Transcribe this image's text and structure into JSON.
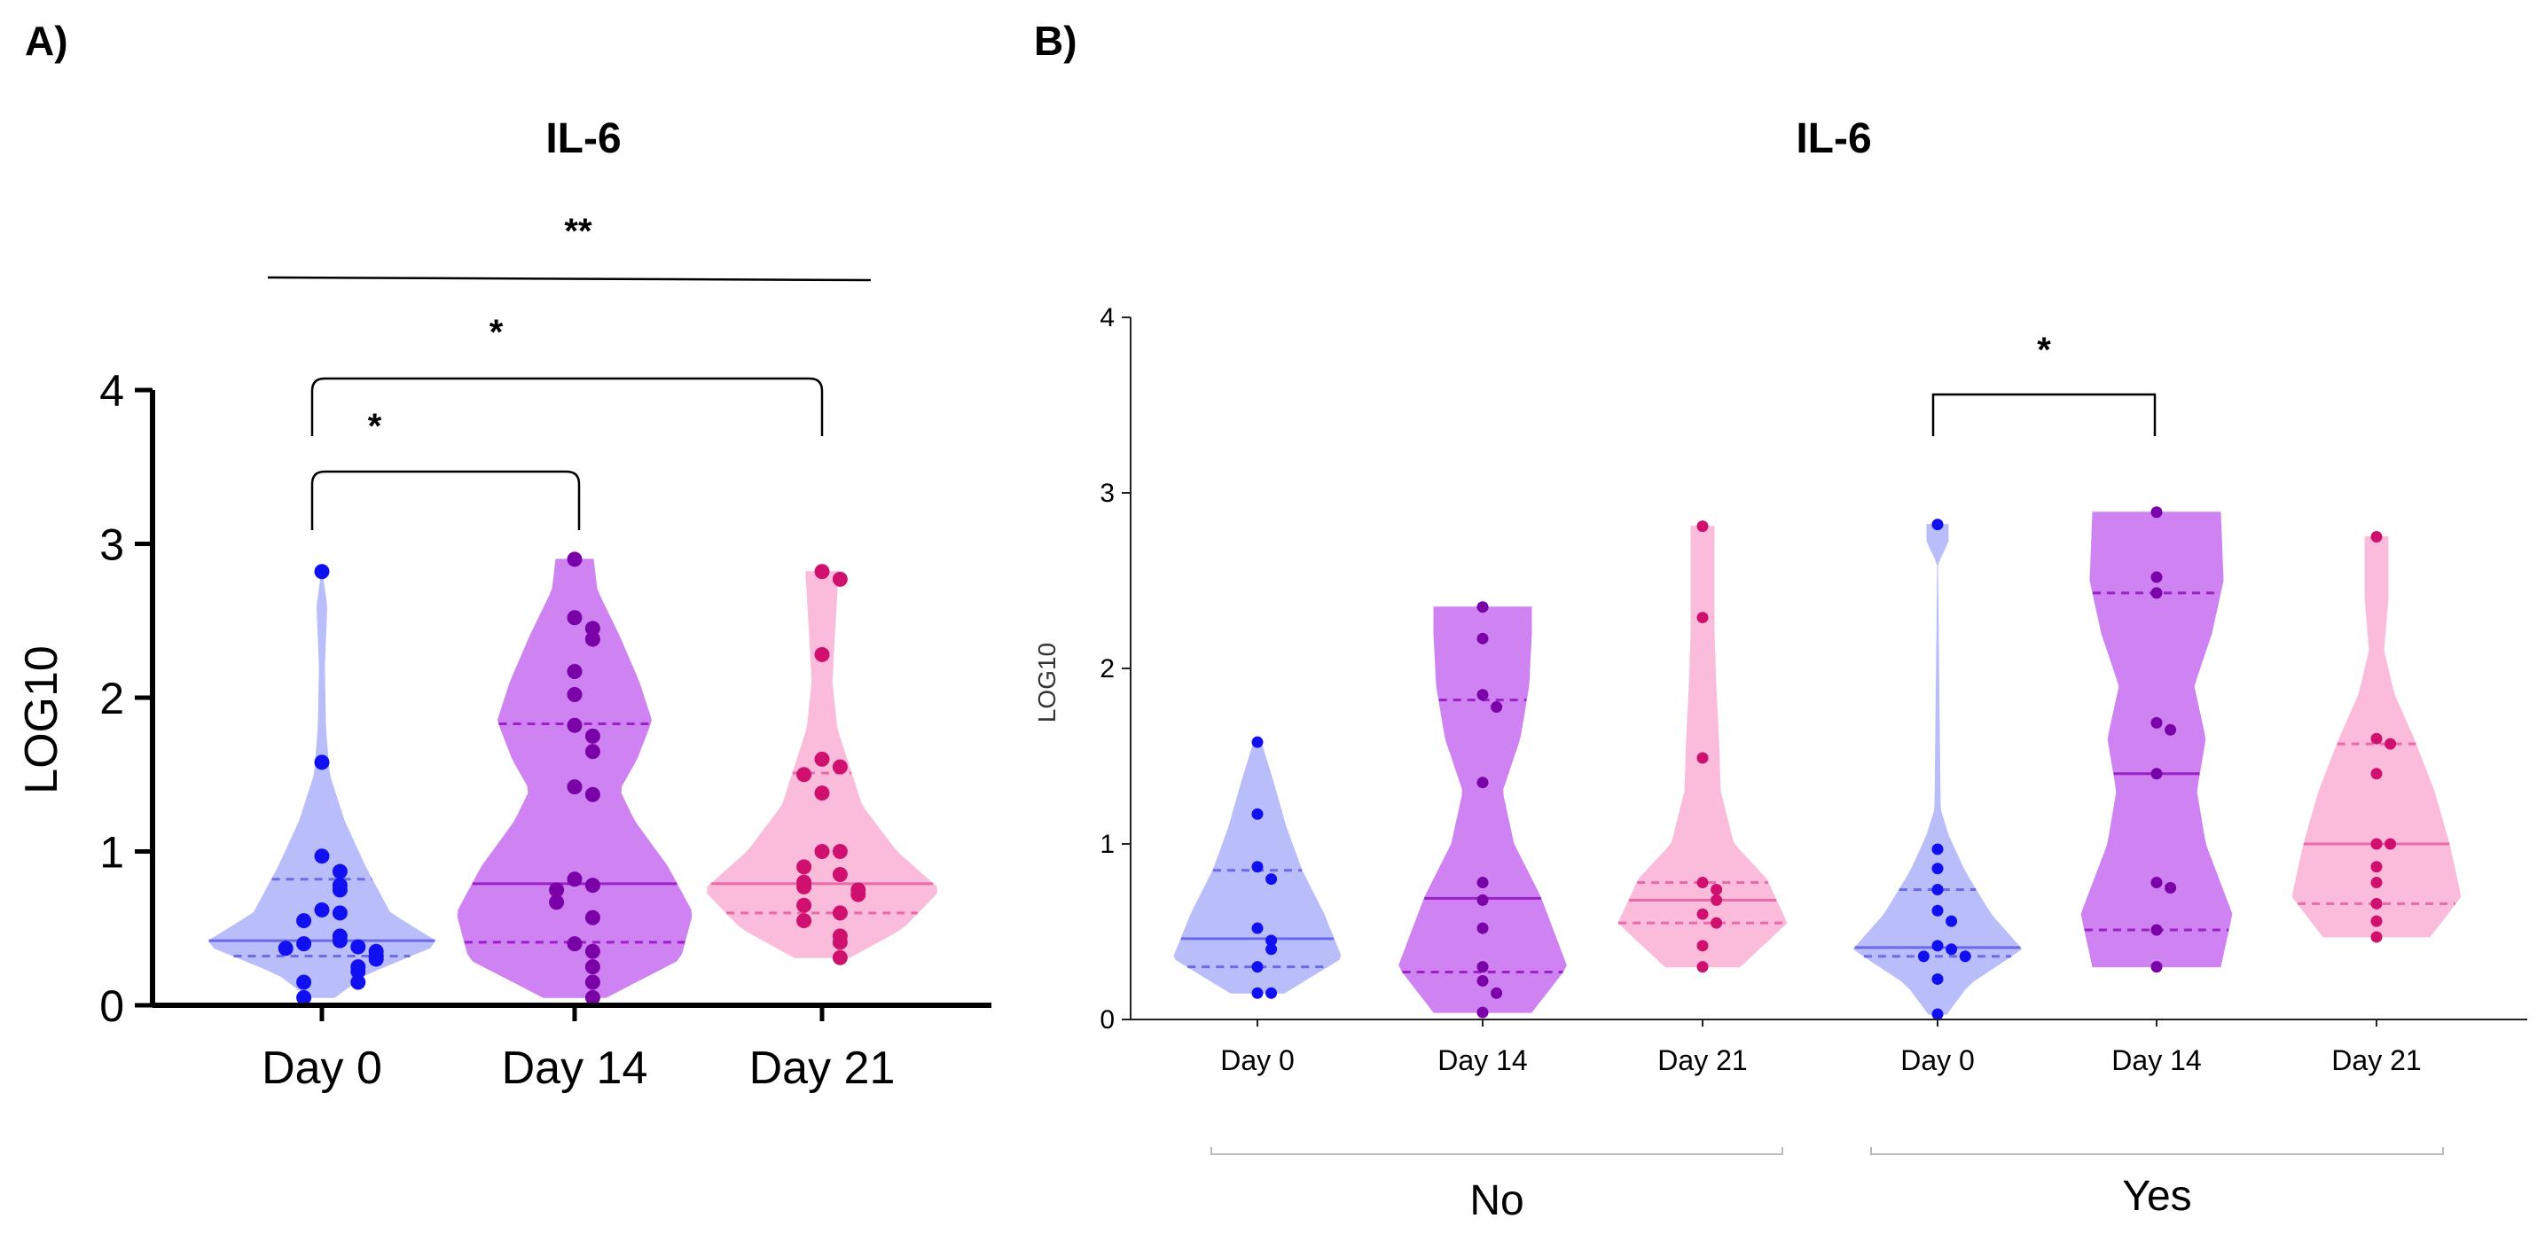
{
  "chart_data": [
    {
      "panel_label": "A)",
      "type": "violin",
      "title": "IL-6",
      "ylabel": "LOG10",
      "ylim": [
        0,
        4
      ],
      "yticks": [
        "0",
        "1",
        "2",
        "3",
        "4"
      ],
      "categories": [
        "Day 0",
        "Day 14",
        "Day 21"
      ],
      "colors": {
        "fill": [
          "#b9bdf9",
          "#cf82f2",
          "#fbbcdc"
        ],
        "points": [
          "#1010f0",
          "#7a00a8",
          "#d0106e"
        ],
        "median": [
          "#6b6be8",
          "#9b20c8",
          "#e86aa8"
        ]
      },
      "series": [
        {
          "name": "Day 0",
          "median": 0.42,
          "q1": 0.32,
          "q3": 0.82,
          "min": 0.05,
          "max": 2.82,
          "points": [
            2.82,
            1.58,
            0.97,
            0.87,
            0.78,
            0.75,
            0.62,
            0.6,
            0.55,
            0.45,
            0.42,
            0.4,
            0.38,
            0.37,
            0.35,
            0.32,
            0.3,
            0.25,
            0.22,
            0.15,
            0.15,
            0.05
          ],
          "density": [
            [
              0.05,
              0.1
            ],
            [
              0.2,
              0.35
            ],
            [
              0.4,
              0.95
            ],
            [
              0.6,
              0.55
            ],
            [
              0.9,
              0.35
            ],
            [
              1.2,
              0.18
            ],
            [
              1.5,
              0.06
            ],
            [
              1.8,
              0.03
            ],
            [
              2.2,
              0.02
            ],
            [
              2.6,
              0.04
            ],
            [
              2.82,
              0.0
            ]
          ]
        },
        {
          "name": "Day 14",
          "median": 0.79,
          "q1": 0.41,
          "q3": 1.83,
          "min": 0.05,
          "max": 2.9,
          "points": [
            2.9,
            2.52,
            2.45,
            2.38,
            2.17,
            2.02,
            1.82,
            1.75,
            1.65,
            1.42,
            1.37,
            0.82,
            0.78,
            0.75,
            0.67,
            0.57,
            0.4,
            0.35,
            0.25,
            0.15,
            0.05
          ],
          "density": [
            [
              0.05,
              0.25
            ],
            [
              0.3,
              0.85
            ],
            [
              0.6,
              0.95
            ],
            [
              0.9,
              0.75
            ],
            [
              1.2,
              0.48
            ],
            [
              1.4,
              0.36
            ],
            [
              1.6,
              0.5
            ],
            [
              1.85,
              0.62
            ],
            [
              2.1,
              0.52
            ],
            [
              2.4,
              0.36
            ],
            [
              2.7,
              0.18
            ],
            [
              2.9,
              0.15
            ]
          ]
        },
        {
          "name": "Day 21",
          "median": 0.79,
          "q1": 0.6,
          "q3": 1.51,
          "min": 0.31,
          "max": 2.82,
          "points": [
            2.82,
            2.77,
            2.28,
            1.6,
            1.55,
            1.5,
            1.38,
            1.0,
            1.0,
            0.9,
            0.85,
            0.8,
            0.77,
            0.75,
            0.72,
            0.65,
            0.6,
            0.55,
            0.45,
            0.41,
            0.31
          ],
          "density": [
            [
              0.31,
              0.22
            ],
            [
              0.5,
              0.65
            ],
            [
              0.75,
              0.95
            ],
            [
              1.0,
              0.6
            ],
            [
              1.3,
              0.32
            ],
            [
              1.55,
              0.22
            ],
            [
              1.8,
              0.12
            ],
            [
              2.1,
              0.08
            ],
            [
              2.4,
              0.1
            ],
            [
              2.82,
              0.13
            ]
          ]
        }
      ],
      "significance": [
        {
          "label": "*",
          "from": "Day 0",
          "to": "Day 14"
        },
        {
          "label": "*",
          "from": "Day 0",
          "to": "Day 21"
        },
        {
          "label": "**",
          "from": "Day 0",
          "to": "Day 21"
        }
      ]
    },
    {
      "panel_label": "B)",
      "type": "violin",
      "title": "IL-6",
      "ylabel": "LOG10",
      "ylim": [
        0,
        4
      ],
      "yticks": [
        "0",
        "1",
        "2",
        "3",
        "4"
      ],
      "categories": [
        "Day 0",
        "Day 14",
        "Day 21",
        "Day 0",
        "Day 14",
        "Day 21"
      ],
      "groups": [
        {
          "label": "No",
          "categories": [
            0,
            1,
            2
          ]
        },
        {
          "label": "Yes",
          "categories": [
            3,
            4,
            5
          ]
        }
      ],
      "colors": {
        "fill": [
          "#b9bdf9",
          "#cf82f2",
          "#fbbcdc"
        ],
        "points": [
          "#1010f0",
          "#7a00a8",
          "#d0106e"
        ],
        "median": [
          "#6b6be8",
          "#9b20c8",
          "#e86aa8"
        ]
      },
      "series": [
        {
          "name": "No · Day 0",
          "median": 0.46,
          "q1": 0.3,
          "q3": 0.85,
          "min": 0.15,
          "max": 1.58,
          "points": [
            1.58,
            1.17,
            0.87,
            0.8,
            0.52,
            0.45,
            0.4,
            0.3,
            0.15,
            0.15
          ],
          "density": [
            [
              0.15,
              0.3
            ],
            [
              0.35,
              0.95
            ],
            [
              0.6,
              0.75
            ],
            [
              0.85,
              0.5
            ],
            [
              1.1,
              0.32
            ],
            [
              1.35,
              0.18
            ],
            [
              1.58,
              0.04
            ]
          ]
        },
        {
          "name": "No · Day 14",
          "median": 0.69,
          "q1": 0.27,
          "q3": 1.82,
          "min": 0.04,
          "max": 2.35,
          "points": [
            2.35,
            2.17,
            1.85,
            1.78,
            1.35,
            0.78,
            0.68,
            0.52,
            0.3,
            0.22,
            0.15,
            0.04
          ],
          "density": [
            [
              0.04,
              0.55
            ],
            [
              0.3,
              0.95
            ],
            [
              0.7,
              0.65
            ],
            [
              1.0,
              0.35
            ],
            [
              1.3,
              0.22
            ],
            [
              1.6,
              0.42
            ],
            [
              1.9,
              0.52
            ],
            [
              2.2,
              0.55
            ],
            [
              2.35,
              0.55
            ]
          ]
        },
        {
          "name": "No · Day 21",
          "median": 0.68,
          "q1": 0.55,
          "q3": 0.78,
          "min": 0.3,
          "max": 2.81,
          "points": [
            2.81,
            2.29,
            1.49,
            0.78,
            0.74,
            0.68,
            0.6,
            0.55,
            0.42,
            0.3
          ],
          "density": [
            [
              0.3,
              0.42
            ],
            [
              0.55,
              0.95
            ],
            [
              0.8,
              0.72
            ],
            [
              1.0,
              0.35
            ],
            [
              1.3,
              0.2
            ],
            [
              1.6,
              0.18
            ],
            [
              1.9,
              0.15
            ],
            [
              2.2,
              0.13
            ],
            [
              2.5,
              0.13
            ],
            [
              2.81,
              0.13
            ]
          ]
        },
        {
          "name": "Yes · Day 0",
          "median": 0.41,
          "q1": 0.36,
          "q3": 0.74,
          "min": 0.03,
          "max": 2.82,
          "points": [
            2.82,
            0.97,
            0.86,
            0.74,
            0.62,
            0.56,
            0.42,
            0.4,
            0.36,
            0.36,
            0.23,
            0.03
          ],
          "density": [
            [
              0.03,
              0.1
            ],
            [
              0.2,
              0.35
            ],
            [
              0.4,
              0.95
            ],
            [
              0.6,
              0.6
            ],
            [
              0.85,
              0.3
            ],
            [
              1.05,
              0.12
            ],
            [
              1.2,
              0.03
            ],
            [
              2.6,
              0.0
            ],
            [
              2.72,
              0.12
            ],
            [
              2.82,
              0.12
            ]
          ]
        },
        {
          "name": "Yes · Day 14",
          "median": 1.4,
          "q1": 0.51,
          "q3": 2.43,
          "min": 0.3,
          "max": 2.89,
          "points": [
            2.89,
            2.52,
            2.43,
            1.69,
            1.65,
            1.4,
            0.78,
            0.75,
            0.51,
            0.3
          ],
          "density": [
            [
              0.3,
              0.72
            ],
            [
              0.6,
              0.85
            ],
            [
              1.0,
              0.55
            ],
            [
              1.3,
              0.45
            ],
            [
              1.6,
              0.55
            ],
            [
              1.9,
              0.42
            ],
            [
              2.2,
              0.62
            ],
            [
              2.5,
              0.75
            ],
            [
              2.89,
              0.72
            ]
          ]
        },
        {
          "name": "Yes · Day 21",
          "median": 1.0,
          "q1": 0.66,
          "q3": 1.57,
          "min": 0.47,
          "max": 2.75,
          "points": [
            2.75,
            1.6,
            1.57,
            1.4,
            1.0,
            1.0,
            0.87,
            0.78,
            0.66,
            0.56,
            0.47
          ],
          "density": [
            [
              0.47,
              0.6
            ],
            [
              0.7,
              0.95
            ],
            [
              1.0,
              0.82
            ],
            [
              1.3,
              0.65
            ],
            [
              1.6,
              0.42
            ],
            [
              1.85,
              0.2
            ],
            [
              2.1,
              0.08
            ],
            [
              2.4,
              0.13
            ],
            [
              2.75,
              0.13
            ]
          ]
        }
      ],
      "significance": [
        {
          "label": "*",
          "from": "Yes · Day 0",
          "to": "Yes · Day 14"
        }
      ]
    }
  ]
}
